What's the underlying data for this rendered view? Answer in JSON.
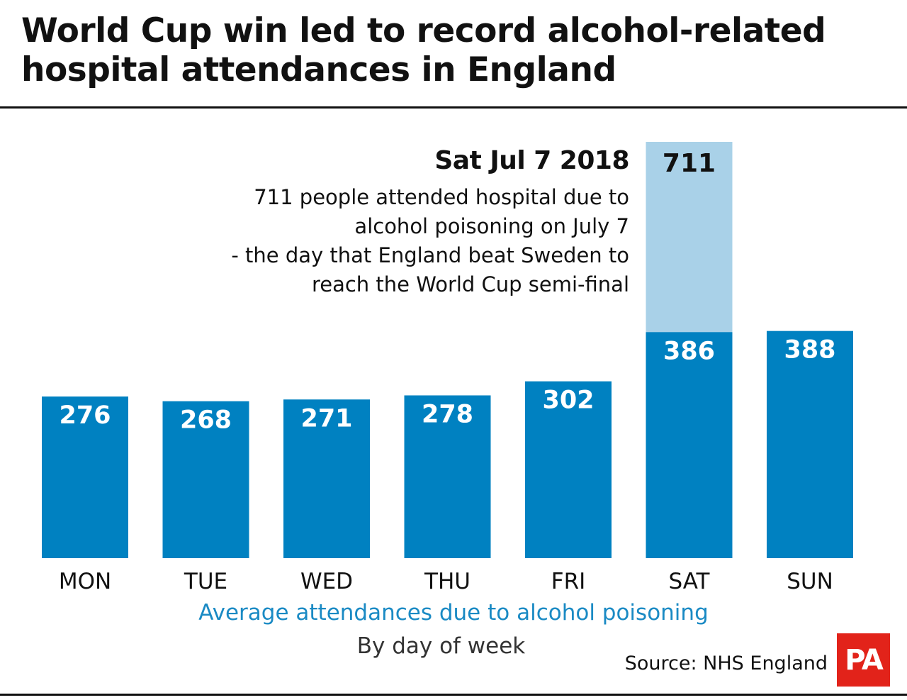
{
  "title": "World Cup win led to record alcohol-related hospital attendances in England",
  "annotation": {
    "title": "Sat Jul 7 2018",
    "lines": [
      "711 people attended hospital due to",
      "alcohol poisoning on July 7",
      "- the day that England beat Sweden to",
      "reach the World Cup semi-final"
    ]
  },
  "source": "Source: NHS England",
  "logo": "PA",
  "colors": {
    "bar": "#0081c1",
    "highlight": "#a9d1e8",
    "xlabel": "#1a8ac4",
    "logo": "#e2231a"
  },
  "chart_data": {
    "type": "bar",
    "title": "World Cup win led to record alcohol-related hospital attendances in England",
    "xlabel": "Average attendances due to alcohol poisoning",
    "subtitle": "By day of week",
    "categories": [
      "MON",
      "TUE",
      "WED",
      "THU",
      "FRI",
      "SAT",
      "SUN"
    ],
    "values": [
      276,
      268,
      271,
      278,
      302,
      386,
      388
    ],
    "highlight": {
      "category": "SAT",
      "value": 711,
      "label": "711"
    },
    "ylim": [
      0,
      711
    ],
    "grid": false
  }
}
